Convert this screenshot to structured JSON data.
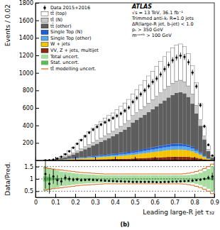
{
  "chart_data": [
    {
      "type": "histogram",
      "y_label": "Events / 0.02",
      "stacked": true,
      "legend": "upper left",
      "tick_labels": "y",
      "annotations": [
        "ATLAS",
        "√s = 13 TeV, 36.1 fb⁻¹",
        "Trimmed anti-kₜ R=1.0 jets",
        "ΔR(large-R jet, b-jet) < 1.0",
        "pₜ > 350 GeV",
        "mᶜᵒᵐᵇ > 100 GeV"
      ],
      "xlim": [
        0,
        0.9
      ],
      "ylim": [
        0,
        1800
      ],
      "xticks": [
        0,
        0.1,
        0.2,
        0.3,
        0.4,
        0.5,
        0.6,
        0.7,
        0.8,
        0.9
      ],
      "yticks": [
        200,
        400,
        600,
        800,
        1000,
        1200,
        1400,
        1600,
        1800
      ],
      "bins": [
        0,
        0.02,
        0.04,
        0.06,
        0.08,
        0.1,
        0.12,
        0.14,
        0.16,
        0.18,
        0.2,
        0.22,
        0.24,
        0.26,
        0.28,
        0.3,
        0.32,
        0.34,
        0.36,
        0.38,
        0.4,
        0.42,
        0.44,
        0.46,
        0.48,
        0.5,
        0.52,
        0.54,
        0.56,
        0.58,
        0.6,
        0.62,
        0.64,
        0.66,
        0.68,
        0.7,
        0.72,
        0.74,
        0.76,
        0.78,
        0.8,
        0.82,
        0.84,
        0.86,
        0.88,
        0.9
      ],
      "series": [
        {
          "name": "Data 2015+2016",
          "type": "scatter",
          "color": "#000000",
          "marker": "circle",
          "values": [
            null,
            null,
            2,
            4,
            10,
            22,
            42,
            70,
            105,
            145,
            190,
            232,
            276,
            318,
            352,
            384,
            410,
            436,
            460,
            484,
            510,
            536,
            568,
            604,
            669,
            713,
            757,
            801,
            849,
            898,
            935,
            983,
            1043,
            1091,
            1144,
            1175,
            1197,
            1183,
            1122,
            1004,
            846,
            631,
            390,
            179,
            55
          ],
          "errors": [
            null,
            null,
            1,
            2,
            3,
            5,
            6,
            8,
            10,
            12,
            14,
            15,
            17,
            18,
            19,
            20,
            20,
            21,
            21,
            22,
            23,
            23,
            24,
            25,
            26,
            27,
            28,
            28,
            29,
            30,
            31,
            31,
            32,
            33,
            34,
            34,
            35,
            34,
            33,
            32,
            29,
            25,
            20,
            13,
            7
          ]
        },
        {
          "name": "tt̄ (top)",
          "type": "histogram",
          "color": "#ffffff",
          "values": [
            0,
            0,
            1,
            1,
            2,
            6,
            15,
            29,
            46,
            65,
            87,
            109,
            129,
            149,
            164,
            179,
            189,
            199,
            205,
            210,
            220,
            228,
            235,
            242,
            248,
            264,
            279,
            294,
            310,
            326,
            342,
            358,
            374,
            391,
            403,
            413,
            414,
            401,
            369,
            320,
            260,
            186,
            110,
            47,
            14
          ]
        },
        {
          "name": "tt̄ (N)",
          "type": "histogram",
          "color": "#c8c8c8",
          "values": [
            0,
            0,
            0,
            1,
            2,
            4,
            6,
            9,
            12,
            16,
            20,
            24,
            28,
            32,
            36,
            40,
            44,
            48,
            52,
            56,
            60,
            64,
            68,
            72,
            78,
            84,
            90,
            96,
            102,
            108,
            114,
            120,
            126,
            130,
            134,
            136,
            136,
            132,
            126,
            112,
            92,
            68,
            40,
            17,
            5
          ]
        },
        {
          "name": "tt̄ (other)",
          "type": "histogram",
          "color": "#5e5e5e",
          "values": [
            0,
            0,
            1,
            2,
            4,
            8,
            14,
            22,
            32,
            44,
            58,
            72,
            88,
            104,
            120,
            136,
            152,
            168,
            185,
            202,
            220,
            240,
            262,
            286,
            330,
            350,
            370,
            390,
            414,
            438,
            462,
            486,
            510,
            536,
            560,
            580,
            590,
            582,
            550,
            492,
            410,
            302,
            184,
            82,
            24
          ]
        },
        {
          "name": "Single Top (N)",
          "type": "histogram",
          "color": "#1f5fd6",
          "values": [
            0,
            0,
            0,
            0,
            0,
            1,
            1,
            2,
            3,
            4,
            5,
            6,
            7,
            8,
            9,
            10,
            11,
            12,
            13,
            14,
            15,
            16,
            17,
            18,
            19,
            20,
            21,
            22,
            23,
            24,
            25,
            26,
            27,
            28,
            28,
            28,
            27,
            26,
            24,
            21,
            17,
            12,
            7,
            3,
            1
          ]
        },
        {
          "name": "Single Top (other)",
          "type": "histogram",
          "color": "#5aa8ea",
          "values": [
            0,
            0,
            0,
            0,
            1,
            1,
            2,
            3,
            4,
            5,
            6,
            7,
            8,
            9,
            10,
            11,
            12,
            13,
            14,
            15,
            16,
            17,
            18,
            19,
            20,
            22,
            24,
            26,
            28,
            30,
            32,
            34,
            36,
            38,
            39,
            40,
            40,
            39,
            37,
            33,
            27,
            20,
            12,
            5,
            1
          ]
        },
        {
          "name": "W + jets",
          "type": "histogram",
          "color": "#f5c400",
          "values": [
            0,
            0,
            0,
            1,
            2,
            3,
            4,
            6,
            8,
            10,
            12,
            14,
            16,
            18,
            20,
            22,
            24,
            26,
            28,
            30,
            32,
            34,
            37,
            40,
            43,
            46,
            50,
            54,
            58,
            62,
            66,
            70,
            74,
            77,
            79,
            80,
            80,
            78,
            74,
            66,
            54,
            40,
            24,
            10,
            3
          ]
        },
        {
          "name": "VV, Z + jets, multijet",
          "type": "histogram",
          "color": "#8b2a10",
          "values": [
            0,
            0,
            0,
            1,
            1,
            2,
            3,
            4,
            5,
            6,
            7,
            8,
            9,
            10,
            11,
            12,
            13,
            14,
            15,
            16,
            17,
            18,
            19,
            20,
            22,
            24,
            26,
            28,
            30,
            32,
            34,
            36,
            38,
            40,
            42,
            43,
            43,
            42,
            40,
            36,
            30,
            22,
            13,
            6,
            2
          ]
        }
      ]
    },
    {
      "type": "scatter",
      "x_label": "Leading large-R jet τ₃₂",
      "y_label": "Data/Pred.",
      "caption": "(b)",
      "grid": true,
      "reference": 1,
      "xlim": [
        0,
        0.9
      ],
      "ylim": [
        0.25,
        1.75
      ],
      "xticks": [
        0,
        0.1,
        0.2,
        0.3,
        0.4,
        0.5,
        0.6,
        0.7,
        0.8,
        0.9
      ],
      "yticks": [
        0.5,
        1,
        1.5
      ],
      "bins": [
        0,
        0.02,
        0.04,
        0.06,
        0.08,
        0.1,
        0.12,
        0.14,
        0.16,
        0.18,
        0.2,
        0.22,
        0.24,
        0.26,
        0.28,
        0.3,
        0.32,
        0.34,
        0.36,
        0.38,
        0.4,
        0.42,
        0.44,
        0.46,
        0.48,
        0.5,
        0.52,
        0.54,
        0.56,
        0.58,
        0.6,
        0.62,
        0.64,
        0.66,
        0.68,
        0.7,
        0.72,
        0.74,
        0.76,
        0.78,
        0.8,
        0.82,
        0.84,
        0.86,
        0.88,
        0.9
      ],
      "series": [
        {
          "type": "scatter",
          "color": "#000000",
          "marker": "circle",
          "values": [
            null,
            null,
            1.2,
            0.8,
            1.1,
            0.95,
            0.9,
            1.05,
            1.0,
            0.97,
            0.98,
            0.95,
            0.96,
            0.97,
            0.96,
            0.95,
            0.94,
            0.93,
            0.92,
            0.91,
            0.9,
            0.9,
            0.89,
            0.89,
            0.88,
            0.88,
            0.88,
            0.88,
            0.88,
            0.88,
            0.87,
            0.87,
            0.88,
            0.88,
            0.89,
            0.89,
            0.9,
            0.91,
            0.92,
            0.93,
            0.95,
            0.97,
            1.0,
            1.05,
            1.1
          ],
          "errors": [
            null,
            null,
            0.6,
            0.4,
            0.3,
            0.2,
            0.15,
            0.12,
            0.1,
            0.08,
            0.07,
            0.06,
            0.05,
            0.05,
            0.05,
            0.04,
            0.04,
            0.04,
            0.04,
            0.04,
            0.04,
            0.04,
            0.04,
            0.04,
            0.04,
            0.03,
            0.03,
            0.03,
            0.03,
            0.03,
            0.03,
            0.03,
            0.03,
            0.03,
            0.03,
            0.03,
            0.03,
            0.03,
            0.03,
            0.03,
            0.03,
            0.04,
            0.05,
            0.08,
            0.15
          ]
        },
        {
          "name": "Total uncert.",
          "type": "band",
          "color": "#a8dca0",
          "errors": [
            null,
            null,
            0.5,
            0.45,
            0.4,
            0.35,
            0.3,
            0.28,
            0.26,
            0.24,
            0.22,
            0.2,
            0.19,
            0.18,
            0.17,
            0.16,
            0.16,
            0.15,
            0.15,
            0.15,
            0.15,
            0.15,
            0.15,
            0.15,
            0.15,
            0.15,
            0.15,
            0.15,
            0.15,
            0.15,
            0.15,
            0.15,
            0.15,
            0.15,
            0.15,
            0.15,
            0.15,
            0.15,
            0.16,
            0.17,
            0.2,
            0.25,
            0.32,
            0.4,
            0.5
          ]
        },
        {
          "name": "Stat. uncert.",
          "type": "band",
          "color": "#5fb85f",
          "errors": [
            null,
            null,
            0.1,
            0.08,
            0.05,
            0.03,
            0.02,
            0.02,
            0.01,
            0.01,
            0.01,
            0.01,
            0.01,
            0.01,
            0.01,
            0.01,
            0.01,
            0.01,
            0.01,
            0.01,
            0.01,
            0.01,
            0.01,
            0.01,
            0.01,
            0.01,
            0.01,
            0.01,
            0.01,
            0.01,
            0.01,
            0.01,
            0.01,
            0.01,
            0.01,
            0.01,
            0.01,
            0.01,
            0.01,
            0.01,
            0.01,
            0.01,
            0.02,
            0.03,
            0.05
          ]
        },
        {
          "name": "tt̄ modelling uncert.",
          "type": "step",
          "color": "#d2691e",
          "errors": [
            null,
            null,
            0.45,
            0.42,
            0.4,
            0.38,
            0.36,
            0.34,
            0.32,
            0.3,
            0.28,
            0.26,
            0.25,
            0.24,
            0.23,
            0.22,
            0.21,
            0.2,
            0.2,
            0.2,
            0.2,
            0.2,
            0.2,
            0.2,
            0.2,
            0.2,
            0.2,
            0.2,
            0.2,
            0.2,
            0.2,
            0.2,
            0.2,
            0.2,
            0.2,
            0.2,
            0.2,
            0.21,
            0.23,
            0.26,
            0.3,
            0.35,
            0.42,
            0.5,
            0.6
          ]
        }
      ]
    }
  ]
}
